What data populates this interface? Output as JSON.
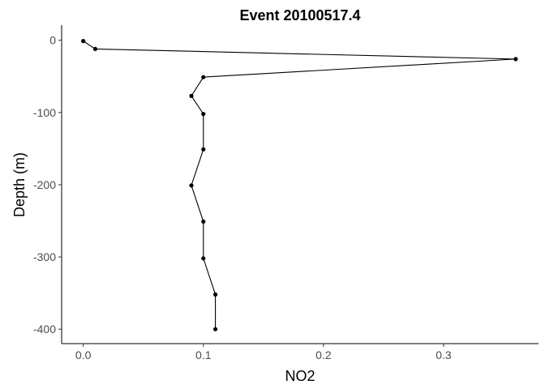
{
  "chart_data": {
    "type": "line",
    "title": "Event 20100517.4",
    "xlabel": "NO2",
    "ylabel": "Depth (m)",
    "xlim": [
      -0.018,
      0.379
    ],
    "ylim": [
      -420,
      21
    ],
    "xticks": [
      {
        "value": 0.0,
        "label": "0.0"
      },
      {
        "value": 0.1,
        "label": "0.1"
      },
      {
        "value": 0.2,
        "label": "0.2"
      },
      {
        "value": 0.3,
        "label": "0.3"
      }
    ],
    "yticks": [
      {
        "value": 0,
        "label": "0"
      },
      {
        "value": -100,
        "label": "-100"
      },
      {
        "value": -200,
        "label": "-200"
      },
      {
        "value": -300,
        "label": "-300"
      },
      {
        "value": -400,
        "label": "-400"
      }
    ],
    "series": [
      {
        "points": [
          {
            "x": 0.0,
            "y": -1
          },
          {
            "x": 0.01,
            "y": -12
          },
          {
            "x": 0.36,
            "y": -26
          },
          {
            "x": 0.1,
            "y": -51
          },
          {
            "x": 0.09,
            "y": -77
          },
          {
            "x": 0.1,
            "y": -102
          },
          {
            "x": 0.1,
            "y": -151
          },
          {
            "x": 0.09,
            "y": -201
          },
          {
            "x": 0.1,
            "y": -251
          },
          {
            "x": 0.1,
            "y": -302
          },
          {
            "x": 0.11,
            "y": -352
          },
          {
            "x": 0.11,
            "y": -400
          }
        ]
      }
    ],
    "grid": false,
    "legend": "none"
  }
}
